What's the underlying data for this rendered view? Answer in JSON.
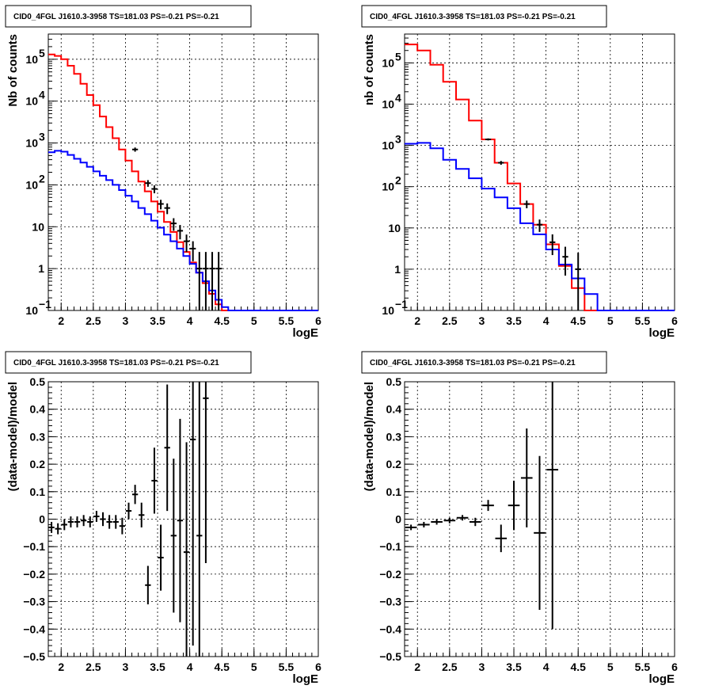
{
  "chart_data": [
    {
      "type": "line",
      "title": "CID0_4FGL J1610.3-3958 TS=181.03 PS=-0.21 PS=-0.21",
      "xlabel": "logE",
      "ylabel": "Nb of counts",
      "xlim": [
        1.8,
        6.0
      ],
      "ylim": [
        0.1,
        400000
      ],
      "yscale": "log",
      "grid": true,
      "x_ticks": [
        "2",
        "2.5",
        "3",
        "3.5",
        "4",
        "4.5",
        "5",
        "5.5",
        "6"
      ],
      "y_ticks": [
        {
          "v": 0.1,
          "label": "10",
          "exp": "−1"
        },
        {
          "v": 1,
          "label": "1",
          "exp": ""
        },
        {
          "v": 10,
          "label": "10",
          "exp": ""
        },
        {
          "v": 100,
          "label": "10",
          "exp": "2"
        },
        {
          "v": 1000,
          "label": "10",
          "exp": "3"
        },
        {
          "v": 10000,
          "label": "10",
          "exp": "4"
        },
        {
          "v": 100000,
          "label": "10",
          "exp": "5"
        }
      ],
      "series": [
        {
          "color": "#ff0000",
          "step": true,
          "bin_width": 0.1,
          "x": [
            1.85,
            1.95,
            2.05,
            2.15,
            2.25,
            2.35,
            2.45,
            2.55,
            2.65,
            2.75,
            2.85,
            2.95,
            3.05,
            3.15,
            3.25,
            3.35,
            3.45,
            3.55,
            3.65,
            3.75,
            3.85,
            3.95,
            4.05,
            4.15,
            4.25,
            4.35,
            4.45,
            4.55,
            4.65,
            4.75,
            4.85,
            4.95,
            5.05,
            5.15,
            5.25,
            5.35,
            5.45,
            5.55,
            5.65,
            5.75,
            5.85,
            5.95
          ],
          "y": [
            130000,
            120000,
            100000,
            70000,
            45000,
            26000,
            14000,
            8000,
            4300,
            2400,
            1300,
            700,
            380,
            210,
            120,
            70,
            40,
            23,
            13,
            7.5,
            4.3,
            2.5,
            1.4,
            0.8,
            0.45,
            0.25,
            0.14,
            0.1,
            0.1,
            0.1,
            0.1,
            0.1,
            0.1,
            0.1,
            0.1,
            0.1,
            0.1,
            0.1,
            0.1,
            0.1,
            0.1,
            0.1
          ]
        },
        {
          "color": "#0000ff",
          "step": true,
          "bin_width": 0.1,
          "x": [
            1.85,
            1.95,
            2.05,
            2.15,
            2.25,
            2.35,
            2.45,
            2.55,
            2.65,
            2.75,
            2.85,
            2.95,
            3.05,
            3.15,
            3.25,
            3.35,
            3.45,
            3.55,
            3.65,
            3.75,
            3.85,
            3.95,
            4.05,
            4.15,
            4.25,
            4.35,
            4.45,
            4.55,
            4.65,
            4.75,
            4.85,
            4.95,
            5.05,
            5.15,
            5.25,
            5.35,
            5.45,
            5.55,
            5.65,
            5.75,
            5.85,
            5.95
          ],
          "y": [
            600,
            650,
            620,
            520,
            420,
            340,
            270,
            210,
            165,
            130,
            100,
            75,
            55,
            40,
            28,
            20,
            14,
            9.5,
            6.5,
            4.5,
            3.0,
            2.0,
            1.3,
            0.8,
            0.5,
            0.3,
            0.18,
            0.12,
            0.1,
            0.1,
            0.1,
            0.1,
            0.1,
            0.1,
            0.1,
            0.1,
            0.1,
            0.1,
            0.1,
            0.1,
            0.1,
            0.1
          ]
        },
        {
          "color": "#000000",
          "type": "errorbar",
          "x": [
            3.15,
            3.35,
            3.45,
            3.55,
            3.65,
            3.75,
            3.85,
            3.95,
            4.05,
            4.15,
            4.25,
            4.35,
            4.45
          ],
          "y": [
            700,
            110,
            80,
            35,
            28,
            12,
            8,
            4.5,
            3,
            1,
            1,
            1,
            1
          ],
          "y_lo": [
            620,
            90,
            63,
            26,
            20,
            8,
            5,
            2.5,
            1.5,
            0.1,
            0.1,
            0.1,
            0.1
          ],
          "y_hi": [
            780,
            130,
            97,
            44,
            36,
            16,
            11,
            6.5,
            4.5,
            2.5,
            2.5,
            2.5,
            2.5
          ]
        }
      ]
    },
    {
      "type": "line",
      "title": "CID0_4FGL J1610.3-3958 TS=181.03 PS=-0.21 PS=-0.21",
      "xlabel": "logE",
      "ylabel": "nb of counts",
      "xlim": [
        1.8,
        6.0
      ],
      "ylim": [
        0.1,
        500000
      ],
      "yscale": "log",
      "grid": true,
      "x_ticks": [
        "2",
        "2.5",
        "3",
        "3.5",
        "4",
        "4.5",
        "5",
        "5.5",
        "6"
      ],
      "y_ticks": [
        {
          "v": 0.1,
          "label": "10",
          "exp": "−1"
        },
        {
          "v": 1,
          "label": "1",
          "exp": ""
        },
        {
          "v": 10,
          "label": "10",
          "exp": ""
        },
        {
          "v": 100,
          "label": "10",
          "exp": "2"
        },
        {
          "v": 1000,
          "label": "10",
          "exp": "3"
        },
        {
          "v": 10000,
          "label": "10",
          "exp": "4"
        },
        {
          "v": 100000,
          "label": "10",
          "exp": "5"
        }
      ],
      "series": [
        {
          "color": "#ff0000",
          "step": true,
          "bin_width": 0.2,
          "x": [
            1.9,
            2.1,
            2.3,
            2.5,
            2.7,
            2.9,
            3.1,
            3.3,
            3.5,
            3.7,
            3.9,
            4.1,
            4.3,
            4.5,
            4.7,
            4.9,
            5.1,
            5.3,
            5.5,
            5.7,
            5.9
          ],
          "y": [
            280000,
            200000,
            90000,
            35000,
            13000,
            4000,
            1400,
            380,
            120,
            38,
            12,
            4,
            1.2,
            0.35,
            0.1,
            0.1,
            0.1,
            0.1,
            0.1,
            0.1,
            0.1
          ]
        },
        {
          "color": "#0000ff",
          "step": true,
          "bin_width": 0.2,
          "x": [
            1.9,
            2.1,
            2.3,
            2.5,
            2.7,
            2.9,
            3.1,
            3.3,
            3.5,
            3.7,
            3.9,
            4.1,
            4.3,
            4.5,
            4.7,
            4.9,
            5.1,
            5.3,
            5.5,
            5.7,
            5.9
          ],
          "y": [
            1100,
            1150,
            850,
            450,
            270,
            160,
            90,
            55,
            30,
            13,
            7,
            3,
            1.3,
            0.6,
            0.25,
            0.1,
            0.1,
            0.1,
            0.1,
            0.1,
            0.1
          ]
        },
        {
          "color": "#000000",
          "type": "errorbar",
          "x": [
            3.1,
            3.3,
            3.7,
            3.9,
            4.1,
            4.3,
            4.5
          ],
          "y": [
            1400,
            380,
            38,
            12,
            4.5,
            2,
            1
          ],
          "y_lo": [
            1320,
            340,
            30,
            8,
            2.2,
            0.7,
            0.1
          ],
          "y_hi": [
            1480,
            420,
            46,
            16,
            7,
            3.5,
            2.5
          ]
        }
      ]
    },
    {
      "type": "scatter",
      "title": "CID0_4FGL J1610.3-3958 TS=181.03 PS=-0.21 PS=-0.21",
      "xlabel": "logE",
      "ylabel": "(data-model)/model",
      "xlim": [
        1.8,
        6.0
      ],
      "ylim": [
        -0.5,
        0.5
      ],
      "yscale": "linear",
      "grid": true,
      "x_ticks": [
        "2",
        "2.5",
        "3",
        "3.5",
        "4",
        "4.5",
        "5",
        "5.5",
        "6"
      ],
      "y_ticks": [
        "−0.5",
        "−0.4",
        "−0.3",
        "−0.2",
        "−0.1",
        "0",
        "0.1",
        "0.2",
        "0.3",
        "0.4",
        "0.5"
      ],
      "series": [
        {
          "color": "#000000",
          "type": "errorbar",
          "bin_width": 0.1,
          "x": [
            1.85,
            1.95,
            2.05,
            2.15,
            2.25,
            2.35,
            2.45,
            2.55,
            2.65,
            2.75,
            2.85,
            2.95,
            3.05,
            3.15,
            3.25,
            3.35,
            3.45,
            3.55,
            3.65,
            3.75,
            3.85,
            3.95,
            4.05,
            4.15,
            4.25
          ],
          "y": [
            -0.03,
            -0.035,
            -0.02,
            -0.01,
            -0.01,
            -0.005,
            -0.01,
            0.01,
            0.0,
            -0.01,
            -0.01,
            -0.025,
            0.03,
            0.09,
            0.015,
            -0.24,
            0.14,
            -0.14,
            0.26,
            -0.06,
            -0.005,
            -0.12,
            0.29,
            -0.06,
            0.44
          ],
          "y_err": [
            0.02,
            0.02,
            0.02,
            0.02,
            0.02,
            0.02,
            0.02,
            0.02,
            0.025,
            0.025,
            0.025,
            0.03,
            0.03,
            0.035,
            0.045,
            0.07,
            0.12,
            0.12,
            0.23,
            0.28,
            0.37,
            0.4,
            0.75,
            0.7,
            0.6
          ]
        }
      ]
    },
    {
      "type": "scatter",
      "title": "CID0_4FGL J1610.3-3958 TS=181.03 PS=-0.21 PS=-0.21",
      "xlabel": "logE",
      "ylabel": "(data-model)/model",
      "xlim": [
        1.8,
        6.0
      ],
      "ylim": [
        -0.5,
        0.5
      ],
      "yscale": "linear",
      "grid": true,
      "x_ticks": [
        "2",
        "2.5",
        "3",
        "3.5",
        "4",
        "4.5",
        "5",
        "5.5",
        "6"
      ],
      "y_ticks": [
        "−0.5",
        "−0.4",
        "−0.3",
        "−0.2",
        "−0.1",
        "0",
        "0.1",
        "0.2",
        "0.3",
        "0.4",
        "0.5"
      ],
      "series": [
        {
          "color": "#000000",
          "type": "errorbar",
          "bin_width": 0.2,
          "x": [
            1.9,
            2.1,
            2.3,
            2.5,
            2.7,
            2.9,
            3.1,
            3.3,
            3.5,
            3.7,
            3.9,
            4.1
          ],
          "y": [
            -0.03,
            -0.02,
            -0.01,
            -0.005,
            0.005,
            -0.01,
            0.05,
            -0.07,
            0.05,
            0.15,
            -0.05,
            0.18
          ],
          "y_err": [
            0.01,
            0.01,
            0.01,
            0.01,
            0.01,
            0.015,
            0.02,
            0.05,
            0.09,
            0.18,
            0.28,
            0.58
          ]
        }
      ]
    }
  ]
}
